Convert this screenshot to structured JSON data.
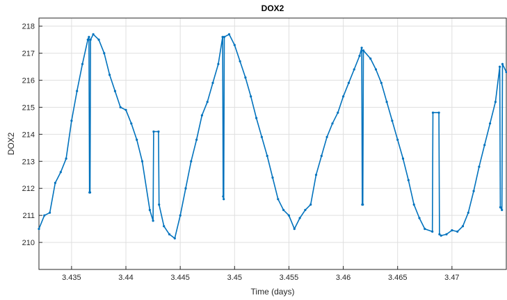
{
  "chart_data": {
    "type": "line",
    "title": "DOX2",
    "xlabel": "Time (days)",
    "ylabel": "DOX2",
    "xlim": [
      3.432,
      3.475
    ],
    "ylim": [
      209,
      218.3
    ],
    "x_ticks": [
      3.435,
      3.44,
      3.445,
      3.45,
      3.455,
      3.46,
      3.465,
      3.47
    ],
    "x_tick_labels": [
      "3.435",
      "3.44",
      "3.445",
      "3.45",
      "3.455",
      "3.46",
      "3.465",
      "3.47"
    ],
    "y_ticks": [
      210,
      211,
      212,
      213,
      214,
      215,
      216,
      217,
      218
    ],
    "y_tick_labels": [
      "210",
      "211",
      "212",
      "213",
      "214",
      "215",
      "216",
      "217",
      "218"
    ],
    "grid": true,
    "series": [
      {
        "color": "#0072BD",
        "points": [
          [
            3.432,
            210.5
          ],
          [
            3.4325,
            211.0
          ],
          [
            3.433,
            211.1
          ],
          [
            3.4335,
            212.2
          ],
          [
            3.434,
            212.6
          ],
          [
            3.4345,
            213.1
          ],
          [
            3.435,
            214.5
          ],
          [
            3.4355,
            215.6
          ],
          [
            3.436,
            216.6
          ],
          [
            3.4365,
            217.5
          ],
          [
            3.4366,
            217.6
          ],
          [
            3.43665,
            211.85
          ],
          [
            3.4367,
            211.85
          ],
          [
            3.43675,
            217.5
          ],
          [
            3.437,
            217.7
          ],
          [
            3.4375,
            217.5
          ],
          [
            3.438,
            217.0
          ],
          [
            3.4385,
            216.2
          ],
          [
            3.439,
            215.6
          ],
          [
            3.4395,
            215.0
          ],
          [
            3.44,
            214.9
          ],
          [
            3.4405,
            214.4
          ],
          [
            3.441,
            213.8
          ],
          [
            3.4415,
            213.0
          ],
          [
            3.4422,
            211.2
          ],
          [
            3.4425,
            210.8
          ],
          [
            3.44255,
            214.1
          ],
          [
            3.443,
            214.1
          ],
          [
            3.44305,
            211.4
          ],
          [
            3.4435,
            210.6
          ],
          [
            3.444,
            210.3
          ],
          [
            3.4445,
            210.15
          ],
          [
            3.445,
            211.0
          ],
          [
            3.4455,
            212.0
          ],
          [
            3.446,
            213.0
          ],
          [
            3.4465,
            213.8
          ],
          [
            3.447,
            214.7
          ],
          [
            3.4475,
            215.2
          ],
          [
            3.448,
            215.9
          ],
          [
            3.4485,
            216.6
          ],
          [
            3.4489,
            217.6
          ],
          [
            3.44895,
            211.7
          ],
          [
            3.449,
            211.6
          ],
          [
            3.44905,
            217.6
          ],
          [
            3.4495,
            217.7
          ],
          [
            3.45,
            217.3
          ],
          [
            3.4505,
            216.7
          ],
          [
            3.451,
            216.1
          ],
          [
            3.4515,
            215.4
          ],
          [
            3.452,
            214.6
          ],
          [
            3.4525,
            213.9
          ],
          [
            3.453,
            213.2
          ],
          [
            3.4535,
            212.4
          ],
          [
            3.454,
            211.6
          ],
          [
            3.4545,
            211.2
          ],
          [
            3.455,
            211.0
          ],
          [
            3.4555,
            210.5
          ],
          [
            3.456,
            210.9
          ],
          [
            3.4565,
            211.2
          ],
          [
            3.457,
            211.4
          ],
          [
            3.4575,
            212.5
          ],
          [
            3.458,
            213.2
          ],
          [
            3.4585,
            213.9
          ],
          [
            3.459,
            214.4
          ],
          [
            3.4595,
            214.8
          ],
          [
            3.46,
            215.4
          ],
          [
            3.4605,
            215.9
          ],
          [
            3.461,
            216.4
          ],
          [
            3.4615,
            216.9
          ],
          [
            3.4617,
            217.2
          ],
          [
            3.46175,
            211.4
          ],
          [
            3.4618,
            211.4
          ],
          [
            3.46185,
            217.1
          ],
          [
            3.4625,
            216.8
          ],
          [
            3.463,
            216.4
          ],
          [
            3.4635,
            215.9
          ],
          [
            3.464,
            215.2
          ],
          [
            3.4645,
            214.5
          ],
          [
            3.465,
            213.8
          ],
          [
            3.4655,
            213.1
          ],
          [
            3.466,
            212.3
          ],
          [
            3.4665,
            211.4
          ],
          [
            3.467,
            210.9
          ],
          [
            3.4675,
            210.5
          ],
          [
            3.4682,
            210.4
          ],
          [
            3.46825,
            214.8
          ],
          [
            3.4688,
            214.8
          ],
          [
            3.46885,
            210.3
          ],
          [
            3.469,
            210.25
          ],
          [
            3.4695,
            210.3
          ],
          [
            3.47,
            210.45
          ],
          [
            3.4705,
            210.4
          ],
          [
            3.471,
            210.6
          ],
          [
            3.4715,
            211.1
          ],
          [
            3.472,
            211.9
          ],
          [
            3.4725,
            212.8
          ],
          [
            3.473,
            213.6
          ],
          [
            3.4735,
            214.4
          ],
          [
            3.474,
            215.2
          ],
          [
            3.4744,
            216.5
          ],
          [
            3.47445,
            211.3
          ],
          [
            3.4746,
            211.2
          ],
          [
            3.47465,
            216.6
          ],
          [
            3.475,
            216.3
          ]
        ]
      }
    ]
  }
}
